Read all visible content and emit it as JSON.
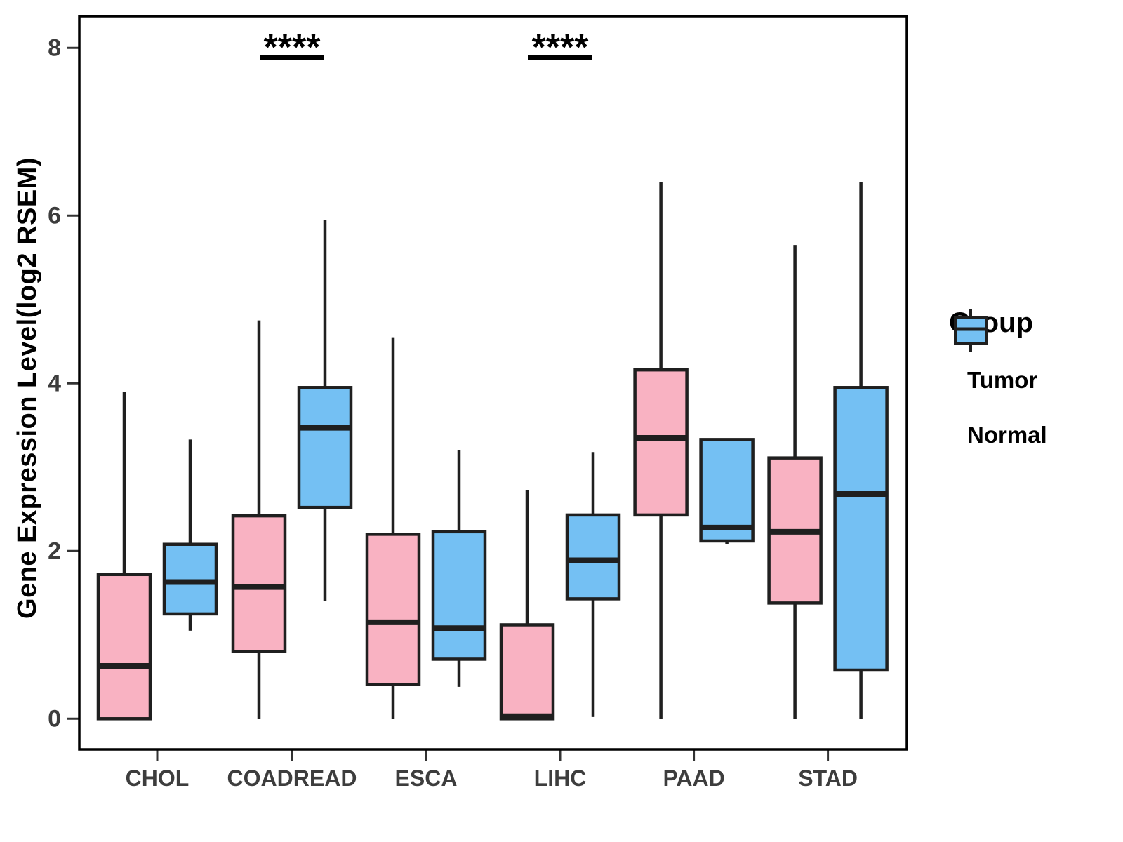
{
  "chart_data": {
    "type": "boxplot",
    "title": "",
    "xlabel": "",
    "ylabel": "Gene Expression Level(log2 RSEM)",
    "ylim": [
      0,
      8
    ],
    "yticks": [
      0,
      2,
      4,
      6,
      8
    ],
    "grid": false,
    "categories": [
      "CHOL",
      "COADREAD",
      "ESCA",
      "LIHC",
      "PAAD",
      "STAD"
    ],
    "legend": {
      "title": "Group",
      "position": "right"
    },
    "series": [
      {
        "name": "Tumor",
        "color": "#F9B2C2",
        "boxes": [
          {
            "category": "CHOL",
            "min": 0,
            "q1": 0,
            "median": 0.63,
            "q3": 1.72,
            "max": 3.9
          },
          {
            "category": "COADREAD",
            "min": 0,
            "q1": 0.8,
            "median": 1.57,
            "q3": 2.42,
            "max": 4.75
          },
          {
            "category": "ESCA",
            "min": 0,
            "q1": 0.41,
            "median": 1.15,
            "q3": 2.2,
            "max": 4.55
          },
          {
            "category": "LIHC",
            "min": 0,
            "q1": 0,
            "median": 0.03,
            "q3": 1.12,
            "max": 2.73
          },
          {
            "category": "PAAD",
            "min": 0,
            "q1": 2.43,
            "median": 3.35,
            "q3": 4.16,
            "max": 6.4
          },
          {
            "category": "STAD",
            "min": 0,
            "q1": 1.38,
            "median": 2.23,
            "q3": 3.11,
            "max": 5.65
          }
        ]
      },
      {
        "name": "Normal",
        "color": "#74C0F3",
        "boxes": [
          {
            "category": "CHOL",
            "min": 1.05,
            "q1": 1.25,
            "median": 1.63,
            "q3": 2.08,
            "max": 3.33
          },
          {
            "category": "COADREAD",
            "min": 1.4,
            "q1": 2.52,
            "median": 3.47,
            "q3": 3.95,
            "max": 5.95
          },
          {
            "category": "ESCA",
            "min": 0.38,
            "q1": 0.71,
            "median": 1.08,
            "q3": 2.23,
            "max": 3.2
          },
          {
            "category": "LIHC",
            "min": 0.02,
            "q1": 1.43,
            "median": 1.89,
            "q3": 2.43,
            "max": 3.18
          },
          {
            "category": "PAAD",
            "min": 2.08,
            "q1": 2.12,
            "median": 2.28,
            "q3": 3.33,
            "max": 3.33
          },
          {
            "category": "STAD",
            "min": 0,
            "q1": 0.58,
            "median": 2.68,
            "q3": 3.95,
            "max": 6.4
          }
        ]
      }
    ],
    "significance": [
      {
        "category": "COADREAD",
        "label": "****"
      },
      {
        "category": "LIHC",
        "label": "****"
      }
    ],
    "style": {
      "box_stroke": "#1F1F1F",
      "axis_line_color": "#000000",
      "axis_text_color": "#3D3D3D",
      "panel_background": "#FFFFFF"
    }
  }
}
